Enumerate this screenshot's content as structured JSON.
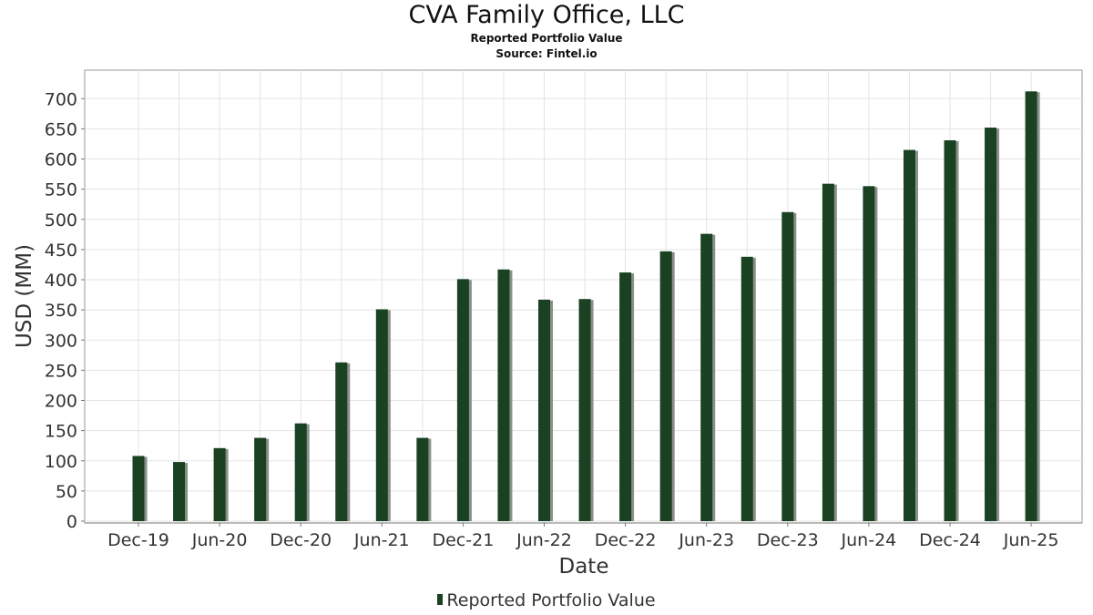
{
  "header": {
    "title": "CVA Family Office, LLC",
    "subtitle": "Reported Portfolio Value",
    "source": "Source: Fintel.io"
  },
  "colors": {
    "bar": "#1a4122",
    "bar_shadow": "#8a8f8a",
    "grid": "#e3e3e3",
    "plot_border": "#999999"
  },
  "legend": {
    "position": "bottom-center",
    "label": "Reported Portfolio Value"
  },
  "chart_data": {
    "type": "bar",
    "xlabel": "Date",
    "ylabel": "USD (MM)",
    "ylim": [
      0,
      745
    ],
    "yticks": [
      0,
      50,
      100,
      150,
      200,
      250,
      300,
      350,
      400,
      450,
      500,
      550,
      600,
      650,
      700
    ],
    "grid": true,
    "x_tick_labels": [
      "Dec-19",
      "Jun-20",
      "Dec-20",
      "Jun-21",
      "Dec-21",
      "Jun-22",
      "Dec-22",
      "Jun-23",
      "Dec-23",
      "Jun-24",
      "Dec-24",
      "Jun-25"
    ],
    "x_tick_positions": [
      0,
      2,
      4,
      6,
      8,
      10,
      12,
      14,
      16,
      18,
      20,
      22
    ],
    "series": [
      {
        "name": "Reported Portfolio Value",
        "values": [
          108,
          98,
          121,
          138,
          162,
          263,
          351,
          138,
          401,
          417,
          367,
          368,
          412,
          447,
          476,
          438,
          512,
          559,
          555,
          615,
          631,
          652,
          712
        ]
      }
    ]
  }
}
